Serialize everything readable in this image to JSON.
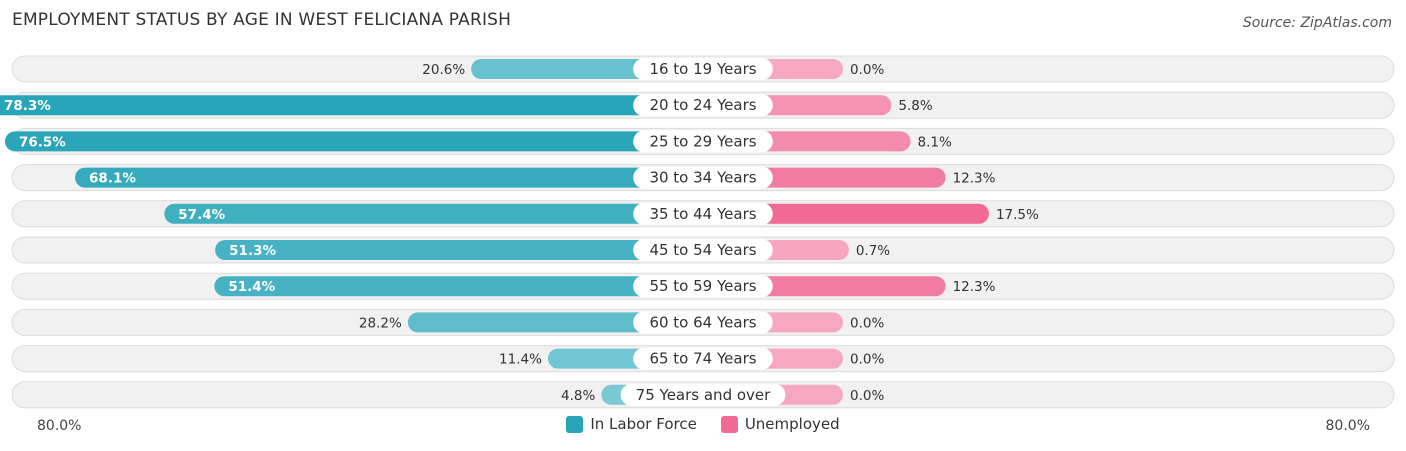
{
  "title": "EMPLOYMENT STATUS BY AGE IN WEST FELICIANA PARISH",
  "source": "Source: ZipAtlas.com",
  "colors": {
    "labor_dark": "#27a4b8",
    "labor_light": "#7fcbd6",
    "unemp_dark": "#f06a93",
    "unemp_light": "#f6a8c1",
    "row_bg": "#f1f1f1",
    "row_border": "#dcdcdc"
  },
  "chart_data": {
    "type": "bar",
    "orientation": "horizontal-diverging",
    "categories": [
      "16 to 19 Years",
      "20 to 24 Years",
      "25 to 29 Years",
      "30 to 34 Years",
      "35 to 44 Years",
      "45 to 54 Years",
      "55 to 59 Years",
      "60 to 64 Years",
      "65 to 74 Years",
      "75 Years and over"
    ],
    "series": [
      {
        "name": "In Labor Force",
        "values": [
          20.6,
          78.3,
          76.5,
          68.1,
          57.4,
          51.3,
          51.4,
          28.2,
          11.4,
          4.8
        ],
        "labels": [
          "20.6%",
          "78.3%",
          "76.5%",
          "68.1%",
          "57.4%",
          "51.3%",
          "51.4%",
          "28.2%",
          "11.4%",
          "4.8%"
        ]
      },
      {
        "name": "Unemployed",
        "values": [
          0.0,
          5.8,
          8.1,
          12.3,
          17.5,
          0.7,
          12.3,
          0.0,
          0.0,
          0.0
        ],
        "labels": [
          "0.0%",
          "5.8%",
          "8.1%",
          "12.3%",
          "17.5%",
          "0.7%",
          "12.3%",
          "0.0%",
          "0.0%",
          "0.0%"
        ]
      }
    ],
    "xlim": [
      0,
      80
    ],
    "axis_left_label": "80.0%",
    "axis_right_label": "80.0%",
    "legend_position": "bottom-center"
  }
}
